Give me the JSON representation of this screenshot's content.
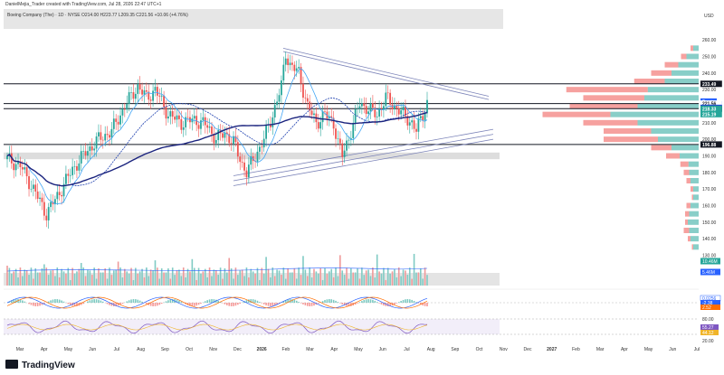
{
  "header": {
    "credit": "DanielMejia_Trader created with TradingView.com, Jul 28, 2026 22:47 UTC+1",
    "instrument": "Boeing Company (The) · 1D · NYSE  O214.00  H223.77  L209.35  C221.56  +10.06 (+4.76%)"
  },
  "footer": {
    "brand": "TradingView"
  },
  "chart_data": {
    "type": "candlestick",
    "currency": "USD",
    "y_ticks": [
      260,
      250,
      240,
      230,
      220,
      210,
      200,
      190,
      180,
      170,
      160,
      150,
      140,
      130,
      120
    ],
    "ylim": [
      115,
      265
    ],
    "x_labels": [
      "Mar",
      "Apr",
      "May",
      "Jun",
      "Jul",
      "Aug",
      "Sep",
      "Oct",
      "Nov",
      "Dec",
      "2026",
      "Feb",
      "Mar",
      "Apr",
      "May",
      "Jun",
      "Jul",
      "Aug",
      "Sep",
      "Oct",
      "Nov",
      "Dec",
      "2027",
      "Feb",
      "Mar",
      "Apr",
      "May",
      "Jun",
      "Jul"
    ],
    "price_path": [
      [
        0,
        188
      ],
      [
        6,
        184
      ],
      [
        12,
        170
      ],
      [
        18,
        155
      ],
      [
        24,
        168
      ],
      [
        30,
        182
      ],
      [
        36,
        192
      ],
      [
        42,
        200
      ],
      [
        48,
        205
      ],
      [
        54,
        220
      ],
      [
        60,
        232
      ],
      [
        64,
        225
      ],
      [
        68,
        230
      ],
      [
        74,
        215
      ],
      [
        80,
        210
      ],
      [
        86,
        212
      ],
      [
        92,
        208
      ],
      [
        96,
        200
      ],
      [
        100,
        204
      ],
      [
        104,
        198
      ],
      [
        108,
        185
      ],
      [
        110,
        180
      ],
      [
        114,
        190
      ],
      [
        118,
        200
      ],
      [
        122,
        215
      ],
      [
        126,
        232
      ],
      [
        128,
        252
      ],
      [
        130,
        245
      ],
      [
        134,
        240
      ],
      [
        138,
        220
      ],
      [
        142,
        210
      ],
      [
        146,
        215
      ],
      [
        150,
        210
      ],
      [
        152,
        198
      ],
      [
        154,
        190
      ],
      [
        158,
        205
      ],
      [
        162,
        222
      ],
      [
        166,
        218
      ],
      [
        170,
        215
      ],
      [
        174,
        225
      ],
      [
        178,
        220
      ],
      [
        182,
        215
      ],
      [
        186,
        210
      ],
      [
        188,
        205
      ],
      [
        190,
        212
      ],
      [
        193,
        222
      ]
    ],
    "horizontal_levels": [
      233.49,
      221.56,
      218.48,
      196.88
    ],
    "badges": [
      {
        "label": "233.49",
        "value": 233.49,
        "color": "#131722"
      },
      {
        "label": "Post",
        "value": 222.8,
        "color": "#2962ff"
      },
      {
        "label": "221.05",
        "value": 221.05,
        "color": "#2962ff"
      },
      {
        "label": "BA",
        "value": 219.3,
        "color": "#ffffff"
      },
      {
        "label": "221.56",
        "value": 221.56,
        "color": "#ffffff"
      },
      {
        "label": "219.00",
        "value": 219.0,
        "color": "#2962ff"
      },
      {
        "label": "218.48",
        "value": 218.48,
        "color": "#131722"
      },
      {
        "label": "218.33",
        "value": 218.33,
        "color": "#26a69a"
      },
      {
        "label": "215.19",
        "value": 215.19,
        "color": "#26a69a"
      },
      {
        "label": "196.88",
        "value": 196.88,
        "color": "#131722"
      }
    ],
    "volume_badges": [
      {
        "label": "10.46M",
        "color": "#26a69a"
      },
      {
        "label": "5.46M",
        "color": "#2962ff"
      }
    ],
    "macd_badges": [
      {
        "label": "0.0256",
        "color": "#2962ff"
      },
      {
        "label": "-2.38",
        "color": "#2962ff"
      },
      {
        "label": "2.52",
        "color": "#ff6d00"
      }
    ],
    "rsi_ticks": [
      80,
      20
    ],
    "rsi_badges": [
      {
        "label": "55.27",
        "color": "#7e57c2"
      },
      {
        "label": "44.12",
        "color": "#f0b429"
      }
    ],
    "volume_profile": [
      {
        "price": 255,
        "up": 8,
        "down": 4
      },
      {
        "price": 250,
        "up": 18,
        "down": 8
      },
      {
        "price": 245,
        "up": 30,
        "down": 20
      },
      {
        "price": 240,
        "up": 40,
        "down": 30
      },
      {
        "price": 235,
        "up": 50,
        "down": 45
      },
      {
        "price": 230,
        "up": 75,
        "down": 120
      },
      {
        "price": 225,
        "up": 80,
        "down": 90
      },
      {
        "price": 220,
        "up": 90,
        "down": 100
      },
      {
        "price": 215,
        "up": 130,
        "down": 100
      },
      {
        "price": 210,
        "up": 90,
        "down": 80
      },
      {
        "price": 205,
        "up": 70,
        "down": 70
      },
      {
        "price": 200,
        "up": 60,
        "down": 80
      },
      {
        "price": 195,
        "up": 40,
        "down": 30
      },
      {
        "price": 190,
        "up": 28,
        "down": 20
      },
      {
        "price": 185,
        "up": 15,
        "down": 12
      },
      {
        "price": 180,
        "up": 14,
        "down": 8
      },
      {
        "price": 175,
        "up": 12,
        "down": 6
      },
      {
        "price": 170,
        "up": 8,
        "down": 4
      },
      {
        "price": 165,
        "up": 8,
        "down": 2
      },
      {
        "price": 160,
        "up": 12,
        "down": 6
      },
      {
        "price": 155,
        "up": 14,
        "down": 6
      },
      {
        "price": 150,
        "up": 16,
        "down": 4
      },
      {
        "price": 145,
        "up": 14,
        "down": 8
      },
      {
        "price": 140,
        "up": 12,
        "down": 4
      },
      {
        "price": 135,
        "up": 8,
        "down": 2
      }
    ]
  }
}
